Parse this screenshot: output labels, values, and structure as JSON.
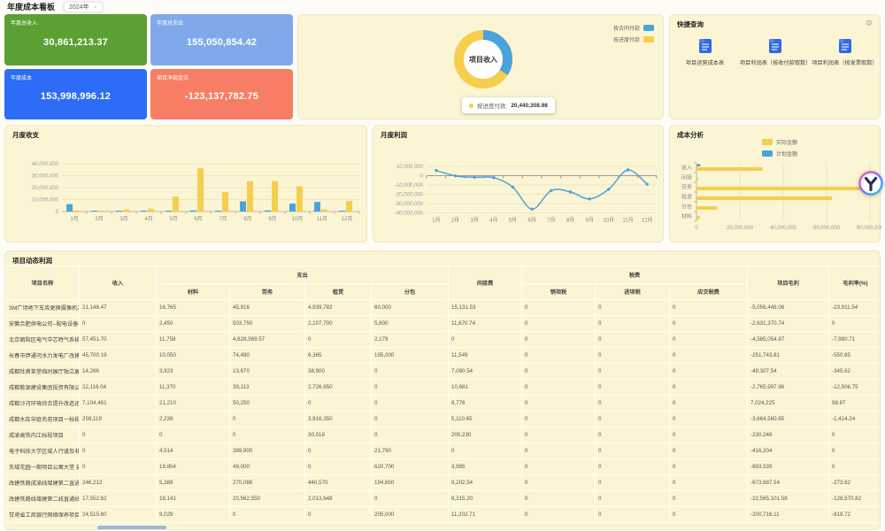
{
  "page": {
    "title": "年度成本看板",
    "year_selector": "2024年"
  },
  "kpis": [
    {
      "label": "年度总收入",
      "value": "30,861,213.37",
      "color": "#5BA033"
    },
    {
      "label": "年度总支出",
      "value": "155,050,854.42",
      "color": "#80A9EB"
    },
    {
      "label": "年度成本",
      "value": "153,998,996.12",
      "color": "#2D6CF6"
    },
    {
      "label": "项目净现金流",
      "value": "-123,137,782.75",
      "color": "#F77E64"
    }
  ],
  "donut": {
    "center_label": "项目收入",
    "legend": [
      {
        "label": "按合同付款",
        "color": "#4AA3DC"
      },
      {
        "label": "按进度付款",
        "color": "#F6CE4D"
      }
    ],
    "tooltip": {
      "label": "按进度付款:",
      "value": "20,440,308.98"
    },
    "slices": [
      {
        "name": "按合同付款",
        "percent": 34,
        "color": "#4AA3DC"
      },
      {
        "name": "按进度付款",
        "percent": 66,
        "color": "#F6CE4D",
        "value": "20,440,308.98"
      }
    ]
  },
  "quick": {
    "title": "快捷查询",
    "items": [
      {
        "label": "项目运营成本表"
      },
      {
        "label": "项目利润表（按收付款取数）"
      },
      {
        "label": "项目利润表（按发票取数）"
      }
    ]
  },
  "chart_data": [
    {
      "id": "monthly_inout",
      "type": "bar",
      "title": "月度收支",
      "categories": [
        "1月",
        "2月",
        "3月",
        "4月",
        "5月",
        "6月",
        "7月",
        "8月",
        "9月",
        "10月",
        "11月",
        "12月"
      ],
      "series": [
        {
          "name": "blue",
          "color": "#4AA3DC",
          "values": [
            6200000,
            500000,
            200000,
            300000,
            200000,
            1000000,
            300000,
            8500000,
            1000000,
            6600000,
            8000000,
            400000
          ]
        },
        {
          "name": "yellow",
          "color": "#F6CE4D",
          "values": [
            900000,
            300000,
            1800000,
            2400000,
            12600000,
            36300000,
            16300000,
            25500000,
            25400000,
            21200000,
            1800000,
            8800000
          ]
        }
      ],
      "ylim": [
        0,
        40000000
      ],
      "yticks": [
        0,
        10000000,
        20000000,
        30000000,
        40000000
      ]
    },
    {
      "id": "monthly_profit",
      "type": "line",
      "title": "月度利润",
      "categories": [
        "1月",
        "2月",
        "3月",
        "4月",
        "5月",
        "6月",
        "7月",
        "8月",
        "9月",
        "10月",
        "11月",
        "12月"
      ],
      "values": [
        5600000,
        -200000,
        -1700000,
        -2100000,
        -12400000,
        -36000000,
        -16000000,
        -17500000,
        -25000000,
        -14600000,
        6200000,
        -9200000
      ],
      "color": "#4AA3DC",
      "ylim": [
        -40000000,
        10000000
      ],
      "yticks": [
        10000000,
        0,
        -10000000,
        -20000000,
        -30000000,
        -40000000
      ]
    },
    {
      "id": "cost_analysis",
      "type": "bar-horizontal",
      "title": "成本分析",
      "categories": [
        "收入",
        "间接",
        "劳务",
        "租赁",
        "分包",
        "材料"
      ],
      "series": [
        {
          "name": "实际金额",
          "color": "#F6CE4D",
          "values": [
            30500000,
            800000,
            78500000,
            62500000,
            9500000,
            1500000
          ]
        },
        {
          "name": "计划金额",
          "color": "#4AA3DC",
          "values": [
            1800000,
            0,
            0,
            0,
            0,
            0
          ]
        }
      ],
      "xlim": [
        0,
        80000000
      ],
      "xticks": [
        0,
        20000000,
        40000000,
        60000000,
        80000000
      ],
      "legend_position": "top"
    }
  ],
  "table": {
    "title": "项目动态利润",
    "columns": {
      "name": "项目名称",
      "income": "收入",
      "expense_group": "支出",
      "expense_cols": [
        "材料",
        "劳务",
        "租赁",
        "分包"
      ],
      "indirect": "间接费",
      "tax_group": "税费",
      "tax_cols": [
        "销项税",
        "进项税",
        "应交税费"
      ],
      "gross": "项目毛利",
      "margin": "毛利率(%)"
    },
    "rows": [
      [
        "SM广场地下车库更换摄像机及硬盘",
        "21,146.47",
        "16,765",
        "45,916",
        "4,939,782",
        "60,000",
        "15,131.53",
        "0",
        "0",
        "0",
        "-5,056,448.06",
        "-23,911.54"
      ],
      [
        "安徽合肥供电公司--配电设备检修",
        "0",
        "2,450",
        "503,750",
        "2,107,700",
        "5,800",
        "11,670.74",
        "0",
        "0",
        "0",
        "-2,631,370.74",
        "0"
      ],
      [
        "北京朝阳区电气中芯特气系统之G",
        "57,451.70",
        "11,758",
        "4,628,569.57",
        "0",
        "2,179",
        "0",
        "0",
        "0",
        "0",
        "-4,585,054.87",
        "-7,980.71"
      ],
      [
        "长春市伊通河水力发电厂改建工程",
        "45,700.19",
        "10,050",
        "74,480",
        "6,365",
        "195,000",
        "11,549",
        "0",
        "0",
        "0",
        "-251,743.81",
        "-550.85"
      ],
      [
        "成都杜甫草堂临时展厅独立展柜制",
        "14,266",
        "3,923",
        "13,670",
        "38,900",
        "0",
        "7,080.54",
        "0",
        "0",
        "0",
        "-49,307.54",
        "-345.62"
      ],
      [
        "成都能源建设集团投资有限公司维",
        "22,116.04",
        "11,370",
        "39,113",
        "2,726,950",
        "0",
        "10,681",
        "0",
        "0",
        "0",
        "-2,765,997.96",
        "-12,506.75"
      ],
      [
        "成都沙河环境综合提升改造运河护",
        "7,104,461",
        "21,210",
        "50,250",
        "0",
        "0",
        "8,776",
        "0",
        "0",
        "0",
        "7,024,225",
        "98.87"
      ],
      [
        "成都水库华庭名苑项目一标段",
        "259,119",
        "2,239",
        "0",
        "3,916,350",
        "0",
        "5,110.65",
        "0",
        "0",
        "0",
        "-3,664,580.65",
        "-1,414.24"
      ],
      [
        "成渝高铁内江标段项目",
        "0",
        "0",
        "0",
        "30,018",
        "0",
        "200,230",
        "0",
        "0",
        "0",
        "-230,248",
        "0"
      ],
      [
        "电子科技大学区域人行道及非机动",
        "0",
        "4,514",
        "389,900",
        "0",
        "21,790",
        "0",
        "0",
        "0",
        "0",
        "-416,204",
        "0"
      ],
      [
        "东域花园一期项目公寓大堂 装饰工",
        "0",
        "19,854",
        "49,000",
        "0",
        "620,700",
        "3,985",
        "0",
        "0",
        "0",
        "-693,539",
        "0"
      ],
      [
        "改建铁路成渝线增建第二直通线（",
        "246,212",
        "5,389",
        "270,088",
        "440,570",
        "194,650",
        "9,202.54",
        "0",
        "0",
        "0",
        "-673,687.54",
        "-273.62"
      ],
      [
        "改建铁路线增建第二线直通线（成",
        "17,552.62",
        "18,141",
        "20,562,550",
        "2,013,648",
        "0",
        "8,315.20",
        "0",
        "0",
        "0",
        "-22,585,101.58",
        "-128,570.82"
      ],
      [
        "甘肃省工商银行网络保养项目",
        "24,515.60",
        "9,029",
        "0",
        "0",
        "205,000",
        "11,202.71",
        "0",
        "0",
        "0",
        "-200,716.11",
        "-818.72"
      ]
    ]
  }
}
